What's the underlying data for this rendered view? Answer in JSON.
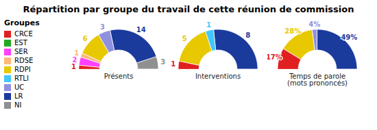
{
  "title": "Répartition par groupe du travail de cette réunion de commission",
  "legend_title": "Groupes",
  "chart_data": [
    {
      "type": "pie",
      "title": "Présents",
      "categories": [
        "CRCE",
        "EST",
        "SER",
        "RDSE",
        "RDPI",
        "RTLI",
        "UC",
        "LR",
        "NI"
      ],
      "values": [
        1,
        0,
        2,
        1,
        6,
        0,
        3,
        14,
        3
      ],
      "colors": [
        "#e02020",
        "#22aa22",
        "#ff40ff",
        "#ffb878",
        "#e8c800",
        "#40c8ff",
        "#9090e0",
        "#1a3a9c",
        "#909090"
      ],
      "data_labels": true
    },
    {
      "type": "pie",
      "title": "Interventions",
      "categories": [
        "CRCE",
        "EST",
        "SER",
        "RDSE",
        "RDPI",
        "RTLI",
        "UC",
        "LR",
        "NI"
      ],
      "values": [
        1,
        0,
        0,
        0,
        5,
        1,
        0,
        8,
        0
      ],
      "colors": [
        "#e02020",
        "#22aa22",
        "#ff40ff",
        "#ffb878",
        "#e8c800",
        "#40c8ff",
        "#9090e0",
        "#1a3a9c",
        "#909090"
      ],
      "data_labels": true
    },
    {
      "type": "pie",
      "title": "Temps de parole\n(mots prononcés)",
      "categories": [
        "CRCE",
        "EST",
        "SER",
        "RDSE",
        "RDPI",
        "RTLI",
        "UC",
        "LR",
        "NI"
      ],
      "values": [
        17,
        0,
        0,
        0,
        28,
        0,
        4,
        49,
        0
      ],
      "value_labels": [
        "17%",
        null,
        null,
        null,
        "28%",
        null,
        "4%",
        "49%",
        null
      ],
      "colors": [
        "#e02020",
        "#22aa22",
        "#ff40ff",
        "#ffb878",
        "#e8c800",
        "#40c8ff",
        "#9090e0",
        "#1a3a9c",
        "#909090"
      ],
      "data_labels": true
    }
  ]
}
